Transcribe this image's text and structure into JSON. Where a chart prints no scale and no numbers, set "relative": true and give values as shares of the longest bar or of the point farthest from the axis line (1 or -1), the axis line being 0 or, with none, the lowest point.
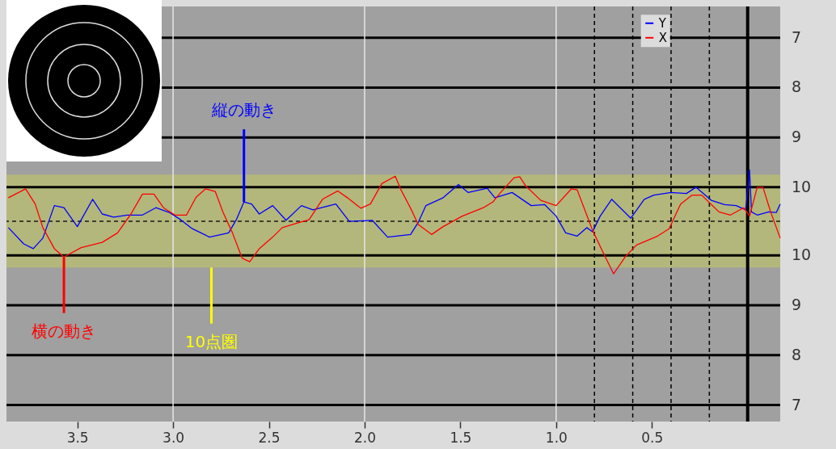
{
  "chart_data": {
    "type": "line",
    "relative": true,
    "xlim": [
      3.87,
      -0.17
    ],
    "xticks": [
      3.5,
      {
        "value": 3,
        "label": "3.0"
      },
      2.5,
      {
        "value": 2,
        "label": "2.0"
      },
      1.5,
      {
        "value": 1,
        "label": "1.0"
      },
      0.5
    ],
    "legend": "top right",
    "series": [
      {
        "name": "Y",
        "color": "#0000ff",
        "x": [
          3.86,
          3.78,
          3.73,
          3.68,
          3.62,
          3.57,
          3.5,
          3.42,
          3.37,
          3.31,
          3.24,
          3.16,
          3.09,
          3.02,
          2.96,
          2.9,
          2.81,
          2.71,
          2.67,
          2.63,
          2.59,
          2.55,
          2.48,
          2.41,
          2.33,
          2.27,
          2.15,
          2.08,
          1.96,
          1.88,
          1.76,
          1.72,
          1.68,
          1.59,
          1.51,
          1.46,
          1.36,
          1.32,
          1.23,
          1.13,
          1.06,
          1.0,
          0.95,
          0.89,
          0.84,
          0.81,
          0.77,
          0.71,
          0.61,
          0.54,
          0.49,
          0.4,
          0.32,
          0.27,
          0.19,
          0.12,
          0.06,
          0.01,
          -0.01,
          -0.02,
          -0.05,
          -0.11,
          -0.15,
          -0.17
        ],
        "values": [
          -0.12,
          -0.43,
          -0.52,
          -0.32,
          0.3,
          0.26,
          -0.1,
          0.42,
          0.14,
          0.08,
          0.12,
          0.12,
          0.26,
          0.17,
          0.03,
          -0.14,
          -0.3,
          -0.22,
          0.03,
          0.37,
          0.33,
          0.14,
          0.3,
          0.02,
          0.3,
          0.22,
          0.33,
          0.0,
          0.02,
          -0.3,
          -0.25,
          -0.02,
          0.3,
          0.45,
          0.7,
          0.55,
          0.63,
          0.45,
          0.55,
          0.3,
          0.32,
          0.1,
          -0.22,
          -0.28,
          -0.12,
          -0.2,
          0.1,
          0.42,
          0.06,
          0.42,
          0.5,
          0.55,
          0.53,
          0.65,
          0.4,
          0.32,
          0.3,
          0.22,
          0.98,
          0.18,
          0.12,
          0.18,
          0.17,
          0.33
        ]
      },
      {
        "name": "X",
        "color": "#ff0000",
        "x": [
          3.86,
          3.77,
          3.72,
          3.68,
          3.62,
          3.57,
          3.48,
          3.37,
          3.29,
          3.22,
          3.16,
          3.1,
          3.05,
          2.99,
          2.93,
          2.88,
          2.83,
          2.78,
          2.74,
          2.69,
          2.64,
          2.6,
          2.55,
          2.48,
          2.43,
          2.34,
          2.29,
          2.22,
          2.14,
          2.09,
          2.02,
          1.97,
          1.91,
          1.84,
          1.81,
          1.76,
          1.72,
          1.65,
          1.59,
          1.49,
          1.38,
          1.33,
          1.29,
          1.22,
          1.19,
          1.16,
          1.08,
          1.0,
          0.92,
          0.89,
          0.81,
          0.75,
          0.7,
          0.64,
          0.58,
          0.47,
          0.41,
          0.35,
          0.29,
          0.24,
          0.15,
          0.09,
          0.02,
          -0.01,
          -0.05,
          -0.08,
          -0.12,
          -0.17
        ],
        "values": [
          0.45,
          0.62,
          0.33,
          -0.12,
          -0.52,
          -0.68,
          -0.5,
          -0.4,
          -0.22,
          0.14,
          0.52,
          0.52,
          0.26,
          0.12,
          0.12,
          0.46,
          0.62,
          0.57,
          0.18,
          -0.22,
          -0.7,
          -0.77,
          -0.52,
          -0.3,
          -0.12,
          -0.02,
          0.03,
          0.42,
          0.58,
          0.45,
          0.25,
          0.33,
          0.72,
          0.86,
          0.6,
          0.25,
          -0.06,
          -0.25,
          -0.1,
          0.1,
          0.26,
          0.37,
          0.55,
          0.83,
          0.85,
          0.68,
          0.4,
          0.3,
          0.62,
          0.6,
          -0.17,
          -0.63,
          -1,
          -0.68,
          -0.45,
          -0.28,
          -0.14,
          0.33,
          0.5,
          0.5,
          0.18,
          0.12,
          0.26,
          0.1,
          0.65,
          0.65,
          0.18,
          -0.32
        ]
      }
    ],
    "bands": [
      {
        "axis": "y",
        "from": -0.88,
        "to": 0.89,
        "color": "#b3b77b"
      }
    ],
    "ref_lines": [
      {
        "axis": "y",
        "value": 3.5,
        "color": "#000000",
        "line_style": "solid"
      },
      {
        "axis": "y",
        "value": 2.55,
        "color": "#000000",
        "line_style": "solid"
      },
      {
        "axis": "y",
        "value": 1.6,
        "color": "#000000",
        "line_style": "solid"
      },
      {
        "axis": "y",
        "value": 0.65,
        "color": "#000000",
        "line_style": "solid"
      },
      {
        "axis": "y",
        "value": -0.65,
        "color": "#000000",
        "line_style": "solid"
      },
      {
        "axis": "y",
        "value": -1.6,
        "color": "#000000",
        "line_style": "solid"
      },
      {
        "axis": "y",
        "value": -2.55,
        "color": "#000000",
        "line_style": "solid"
      },
      {
        "axis": "y",
        "value": -3.5,
        "color": "#000000",
        "line_style": "solid"
      },
      {
        "axis": "y",
        "value": 0,
        "color": "#1a1a1a",
        "line_style": "dashed"
      },
      {
        "axis": "x",
        "value": 3,
        "color": "#e6e6e6",
        "line_style": "solid"
      },
      {
        "axis": "x",
        "value": 2,
        "color": "#e6e6e6",
        "line_style": "solid"
      },
      {
        "axis": "x",
        "value": 1,
        "color": "#e6e6e6",
        "line_style": "solid"
      },
      {
        "axis": "x",
        "value": 0.8,
        "color": "#000000",
        "line_style": "dashed"
      },
      {
        "axis": "x",
        "value": 0.6,
        "color": "#000000",
        "line_style": "dashed"
      },
      {
        "axis": "x",
        "value": 0.4,
        "color": "#000000",
        "line_style": "dashed"
      },
      {
        "axis": "x",
        "value": 0.2,
        "color": "#000000",
        "line_style": "dashed"
      },
      {
        "axis": "x",
        "value": 0,
        "color": "#000000",
        "line_style": "solid"
      }
    ],
    "annotations": [
      {
        "text": "縦の動き",
        "x": 2.63,
        "y": 0.37
      },
      {
        "text": "横の動き",
        "x": 3.57,
        "y": -0.68
      },
      {
        "text": "10点圏",
        "x": 2.8,
        "y": -0.88
      },
      "7",
      "8",
      "9",
      "10",
      "10",
      "9",
      "8",
      "7"
    ]
  }
}
